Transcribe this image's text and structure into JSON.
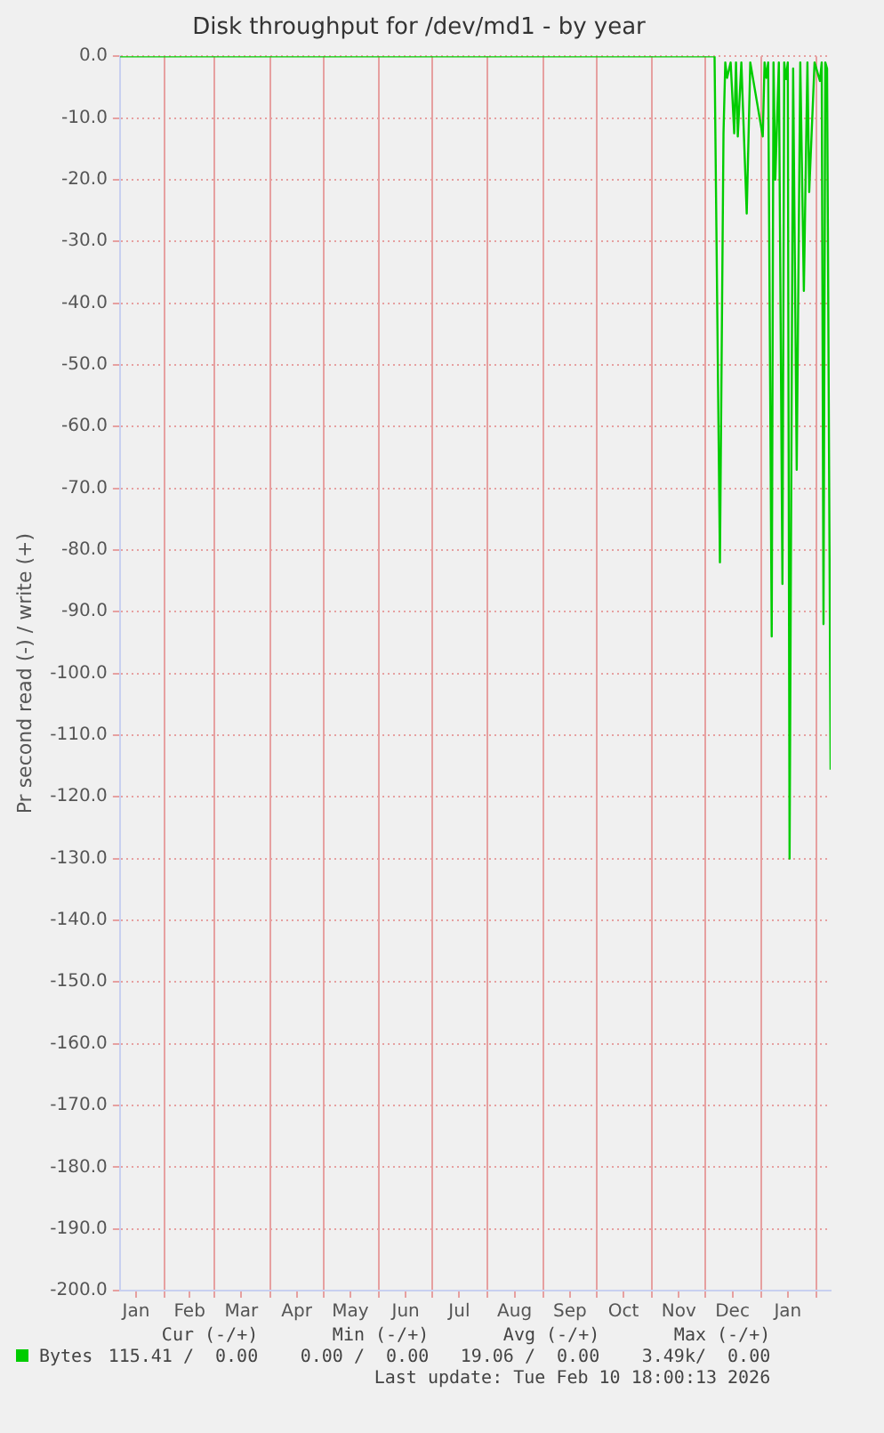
{
  "chart_data": {
    "type": "line",
    "title": "Disk throughput for /dev/md1 - by year",
    "ylabel": "Pr second read (-) / write (+)",
    "x": [
      "2025-01-07",
      "2025-12-06",
      "2025-12-09",
      "2025-12-11",
      "2025-12-12",
      "2025-12-13",
      "2025-12-15",
      "2025-12-17",
      "2025-12-18",
      "2025-12-19",
      "2025-12-21",
      "2025-12-24",
      "2025-12-26",
      "2026-01-02",
      "2026-01-03",
      "2026-01-04",
      "2026-01-05",
      "2026-01-07",
      "2026-01-08",
      "2026-01-09",
      "2026-01-11",
      "2026-01-13",
      "2026-01-14",
      "2026-01-15",
      "2026-01-16",
      "2026-01-17",
      "2026-01-19",
      "2026-01-21",
      "2026-01-23",
      "2026-01-25",
      "2026-01-27",
      "2026-01-28",
      "2026-01-31",
      "2026-02-03",
      "2026-02-04",
      "2026-02-05",
      "2026-02-06",
      "2026-02-07",
      "2026-02-09"
    ],
    "series": [
      {
        "name": "Bytes",
        "color": "#00cc00",
        "values": [
          0,
          0,
          -82,
          -12.5,
          -1,
          -3.5,
          -1,
          -12.5,
          -1,
          -13,
          -1,
          -25.5,
          -1,
          -13,
          -1,
          -3.5,
          -1,
          -94,
          -1,
          -20,
          -1,
          -85.5,
          -1,
          -3.7,
          -1,
          -130,
          -2,
          -67,
          -1,
          -38,
          -1,
          -22,
          -1,
          -4,
          -1,
          -92,
          -1,
          -2,
          -115.6
        ]
      }
    ],
    "xlim": [
      "2025-01-07",
      "2026-02-09"
    ],
    "xticks": [
      {
        "value": "2025-01-16",
        "label": "Jan"
      },
      {
        "value": "2025-02-01",
        "label": null
      },
      {
        "value": "2025-02-15",
        "label": "Feb"
      },
      {
        "value": "2025-03-01",
        "label": null
      },
      {
        "value": "2025-03-16",
        "label": "Mar"
      },
      {
        "value": "2025-04-01",
        "label": null
      },
      {
        "value": "2025-04-16",
        "label": "Apr"
      },
      {
        "value": "2025-05-01",
        "label": null
      },
      {
        "value": "2025-05-16",
        "label": "May"
      },
      {
        "value": "2025-06-01",
        "label": null
      },
      {
        "value": "2025-06-16",
        "label": "Jun"
      },
      {
        "value": "2025-07-01",
        "label": null
      },
      {
        "value": "2025-07-16",
        "label": "Jul"
      },
      {
        "value": "2025-08-01",
        "label": null
      },
      {
        "value": "2025-08-16",
        "label": "Aug"
      },
      {
        "value": "2025-09-01",
        "label": null
      },
      {
        "value": "2025-09-16",
        "label": "Sep"
      },
      {
        "value": "2025-10-01",
        "label": null
      },
      {
        "value": "2025-10-16",
        "label": "Oct"
      },
      {
        "value": "2025-11-01",
        "label": null
      },
      {
        "value": "2025-11-16",
        "label": "Nov"
      },
      {
        "value": "2025-12-01",
        "label": null
      },
      {
        "value": "2025-12-16",
        "label": "Dec"
      },
      {
        "value": "2026-01-01",
        "label": null
      },
      {
        "value": "2026-01-16",
        "label": "Jan"
      },
      {
        "value": "2026-02-01",
        "label": null
      }
    ],
    "ylim": [
      -200,
      0
    ],
    "yticks": [
      {
        "value": 0,
        "label": "0.0"
      },
      {
        "value": -10,
        "label": "-10.0"
      },
      {
        "value": -20,
        "label": "-20.0"
      },
      {
        "value": -30,
        "label": "-30.0"
      },
      {
        "value": -40,
        "label": "-40.0"
      },
      {
        "value": -50,
        "label": "-50.0"
      },
      {
        "value": -60,
        "label": "-60.0"
      },
      {
        "value": -70,
        "label": "-70.0"
      },
      {
        "value": -80,
        "label": "-80.0"
      },
      {
        "value": -90,
        "label": "-90.0"
      },
      {
        "value": -100,
        "label": "-100.0"
      },
      {
        "value": -110,
        "label": "-110.0"
      },
      {
        "value": -120,
        "label": "-120.0"
      },
      {
        "value": -130,
        "label": "-130.0"
      },
      {
        "value": -140,
        "label": "-140.0"
      },
      {
        "value": -150,
        "label": "-150.0"
      },
      {
        "value": -160,
        "label": "-160.0"
      },
      {
        "value": -170,
        "label": "-170.0"
      },
      {
        "value": -180,
        "label": "-180.0"
      },
      {
        "value": -190,
        "label": "-190.0"
      },
      {
        "value": -200,
        "label": "-200.0"
      }
    ],
    "grid": true,
    "legend": "bottom",
    "marker": "none",
    "line_style": "solid",
    "annotations": [
      "Cur (-/+)",
      "Min (-/+)",
      "Avg (-/+)",
      "Max (-/+)",
      "115.41 /  0.00",
      "0.00 /  0.00",
      "19.06 /  0.00",
      "3.49k/  0.00",
      "Last update: Tue Feb 10 18:00:13 2026"
    ]
  }
}
